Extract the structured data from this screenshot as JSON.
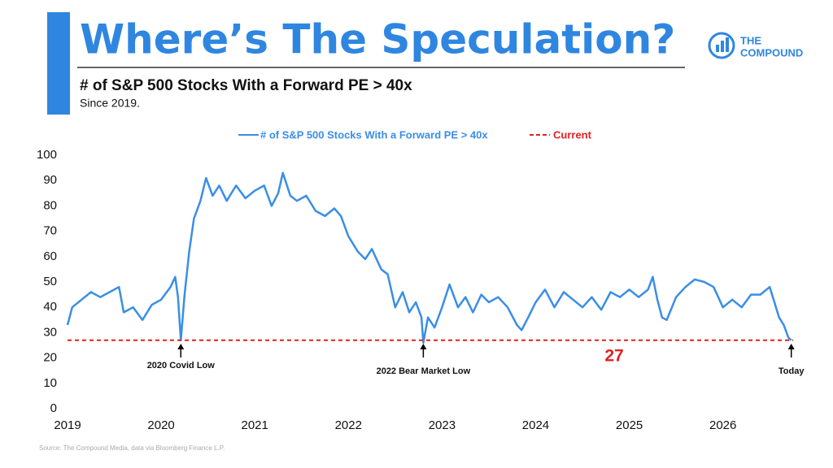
{
  "header": {
    "title": "Where’s The Speculation?",
    "subtitle": "# of S&P 500 Stocks With a Forward PE > 40x",
    "note": "Since 2019.",
    "logo_line1": "THE",
    "logo_line2": "COMPOUND"
  },
  "source": "Source: The Compound Media, data via Bloomberg Finance L.P.",
  "chart_data": {
    "type": "line",
    "x": [
      2019.0,
      2019.05,
      2019.15,
      2019.25,
      2019.35,
      2019.45,
      2019.55,
      2019.6,
      2019.7,
      2019.8,
      2019.9,
      2020.0,
      2020.1,
      2020.15,
      2020.18,
      2020.21,
      2020.25,
      2020.3,
      2020.35,
      2020.42,
      2020.48,
      2020.55,
      2020.62,
      2020.7,
      2020.8,
      2020.9,
      2021.0,
      2021.1,
      2021.18,
      2021.25,
      2021.3,
      2021.38,
      2021.45,
      2021.55,
      2021.65,
      2021.75,
      2021.85,
      2021.92,
      2022.0,
      2022.1,
      2022.18,
      2022.25,
      2022.35,
      2022.42,
      2022.5,
      2022.58,
      2022.65,
      2022.72,
      2022.78,
      2022.8,
      2022.85,
      2022.92,
      2023.0,
      2023.08,
      2023.17,
      2023.25,
      2023.33,
      2023.42,
      2023.5,
      2023.6,
      2023.7,
      2023.8,
      2023.85,
      2023.92,
      2024.0,
      2024.1,
      2024.2,
      2024.3,
      2024.4,
      2024.5,
      2024.6,
      2024.7,
      2024.8,
      2024.9,
      2025.0,
      2025.1,
      2025.2,
      2025.25,
      2025.3,
      2025.35,
      2025.4,
      2025.5,
      2025.6,
      2025.7,
      2025.8,
      2025.9,
      2026.0,
      2026.1,
      2026.2,
      2026.3,
      2026.4,
      2026.5,
      2026.55,
      2026.6,
      2026.65,
      2026.7,
      2026.73
    ],
    "series": [
      {
        "name": "# of S&P 500 Stocks With a Forward PE > 40x",
        "color": "#3a8ee6",
        "values": [
          33,
          40,
          43,
          46,
          44,
          46,
          48,
          38,
          40,
          35,
          41,
          43,
          48,
          52,
          44,
          27,
          45,
          62,
          75,
          82,
          91,
          84,
          88,
          82,
          88,
          83,
          86,
          88,
          80,
          85,
          93,
          84,
          82,
          84,
          78,
          76,
          79,
          76,
          68,
          62,
          59,
          63,
          55,
          53,
          40,
          46,
          38,
          42,
          36,
          26,
          36,
          32,
          40,
          49,
          40,
          44,
          38,
          45,
          42,
          44,
          40,
          33,
          31,
          36,
          42,
          47,
          40,
          46,
          43,
          40,
          44,
          39,
          46,
          44,
          47,
          44,
          47,
          52,
          43,
          36,
          35,
          44,
          48,
          51,
          50,
          48,
          40,
          43,
          40,
          45,
          45,
          48,
          42,
          36,
          33,
          28,
          27
        ]
      }
    ],
    "reference_line": {
      "name": "Current",
      "value": 27,
      "color": "#e02020"
    },
    "annotations": [
      {
        "text": "2020 Covid Low",
        "x": 2020.21
      },
      {
        "text": "2022 Bear Market Low",
        "x": 2022.8
      },
      {
        "text": "Today",
        "x": 2026.73
      }
    ],
    "xlim": [
      2019,
      2026.75
    ],
    "xticks": [
      2019,
      2020,
      2021,
      2022,
      2023,
      2024,
      2025,
      2026
    ],
    "ylim": [
      0,
      100
    ],
    "yticks": [
      0,
      10,
      20,
      30,
      40,
      50,
      60,
      70,
      80,
      90,
      100
    ]
  }
}
